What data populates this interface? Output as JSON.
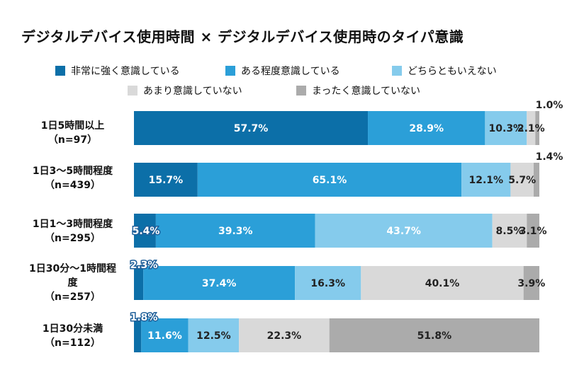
{
  "title": "デジタルデバイス使用時間 × デジタルデバイス使用時のタイパ意識",
  "colors": {
    "series": [
      "#0c6fa8",
      "#2b9fd8",
      "#85cbec",
      "#d9d9d9",
      "#ababab"
    ],
    "label_dark_text": "#222222",
    "label_light_text": "#ffffff",
    "label_outline": "#1f5f99"
  },
  "chart_data": {
    "type": "bar",
    "orientation": "horizontal",
    "stacked": true,
    "percent_scale": true,
    "xlim": [
      0,
      100
    ],
    "title": "デジタルデバイス使用時間 × デジタルデバイス使用時のタイパ意識",
    "legend_position": "top",
    "categories": [
      "1日5時間以上\n（n=97）",
      "1日3～5時間程度\n（n=439）",
      "1日1～3時間程度\n（n=295）",
      "1日30分～1時間程\n度\n（n=257）",
      "1日30分未満\n（n=112）"
    ],
    "series": [
      {
        "name": "非常に強く意識している",
        "values": [
          57.7,
          15.7,
          5.4,
          2.3,
          1.8
        ]
      },
      {
        "name": "ある程度意識している",
        "values": [
          28.9,
          65.1,
          39.3,
          37.4,
          11.6
        ]
      },
      {
        "name": "どちらともいえない",
        "values": [
          10.3,
          12.1,
          43.7,
          16.3,
          12.5
        ]
      },
      {
        "name": "あまり意識していない",
        "values": [
          2.1,
          5.7,
          8.5,
          40.1,
          22.3
        ]
      },
      {
        "name": "まったく意識していない",
        "values": [
          1.0,
          1.4,
          3.1,
          3.9,
          51.8
        ]
      }
    ],
    "data_labels": [
      [
        "57.7%",
        "28.9%",
        "10.3%",
        "2.1%",
        "1.0%"
      ],
      [
        "15.7%",
        "65.1%",
        "12.1%",
        "5.7%",
        "1.4%"
      ],
      [
        "5.4%",
        "39.3%",
        "43.7%",
        "8.5%",
        "3.1%"
      ],
      [
        "2.3%",
        "37.4%",
        "16.3%",
        "40.1%",
        "3.9%"
      ],
      [
        "1.8%",
        "11.6%",
        "12.5%",
        "22.3%",
        "51.8%"
      ]
    ]
  }
}
